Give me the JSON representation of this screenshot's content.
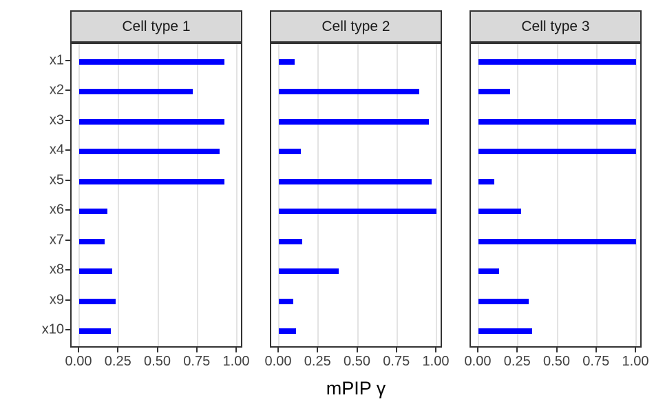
{
  "chart_data": {
    "type": "bar",
    "orientation": "horizontal",
    "title": "",
    "xlabel": "mPIP γ",
    "ylabel": "",
    "xlim": [
      0,
      1
    ],
    "grid": "major-x-only",
    "legend_position": "none",
    "categories": [
      "x1",
      "x2",
      "x3",
      "x4",
      "x5",
      "x6",
      "x7",
      "x8",
      "x9",
      "x10"
    ],
    "x_ticks": [
      0,
      0.25,
      0.5,
      0.75,
      1.0
    ],
    "x_tick_labels": [
      "0.00",
      "0.25",
      "0.50",
      "0.75",
      "1.00"
    ],
    "facets": [
      {
        "title": "Cell type 1",
        "values": [
          0.92,
          0.72,
          0.92,
          0.89,
          0.92,
          0.18,
          0.16,
          0.21,
          0.23,
          0.2
        ]
      },
      {
        "title": "Cell type 2",
        "values": [
          0.1,
          0.89,
          0.95,
          0.14,
          0.97,
          1.0,
          0.15,
          0.38,
          0.09,
          0.11
        ]
      },
      {
        "title": "Cell type 3",
        "values": [
          1.0,
          0.2,
          1.0,
          1.0,
          0.1,
          0.27,
          1.0,
          0.13,
          0.32,
          0.34
        ]
      }
    ],
    "colors": {
      "bar": "#0000FF",
      "gridline": "#E3E3E3",
      "panel_border": "#333333",
      "strip_background": "#D9D9D9",
      "tick_text": "#404040"
    }
  }
}
